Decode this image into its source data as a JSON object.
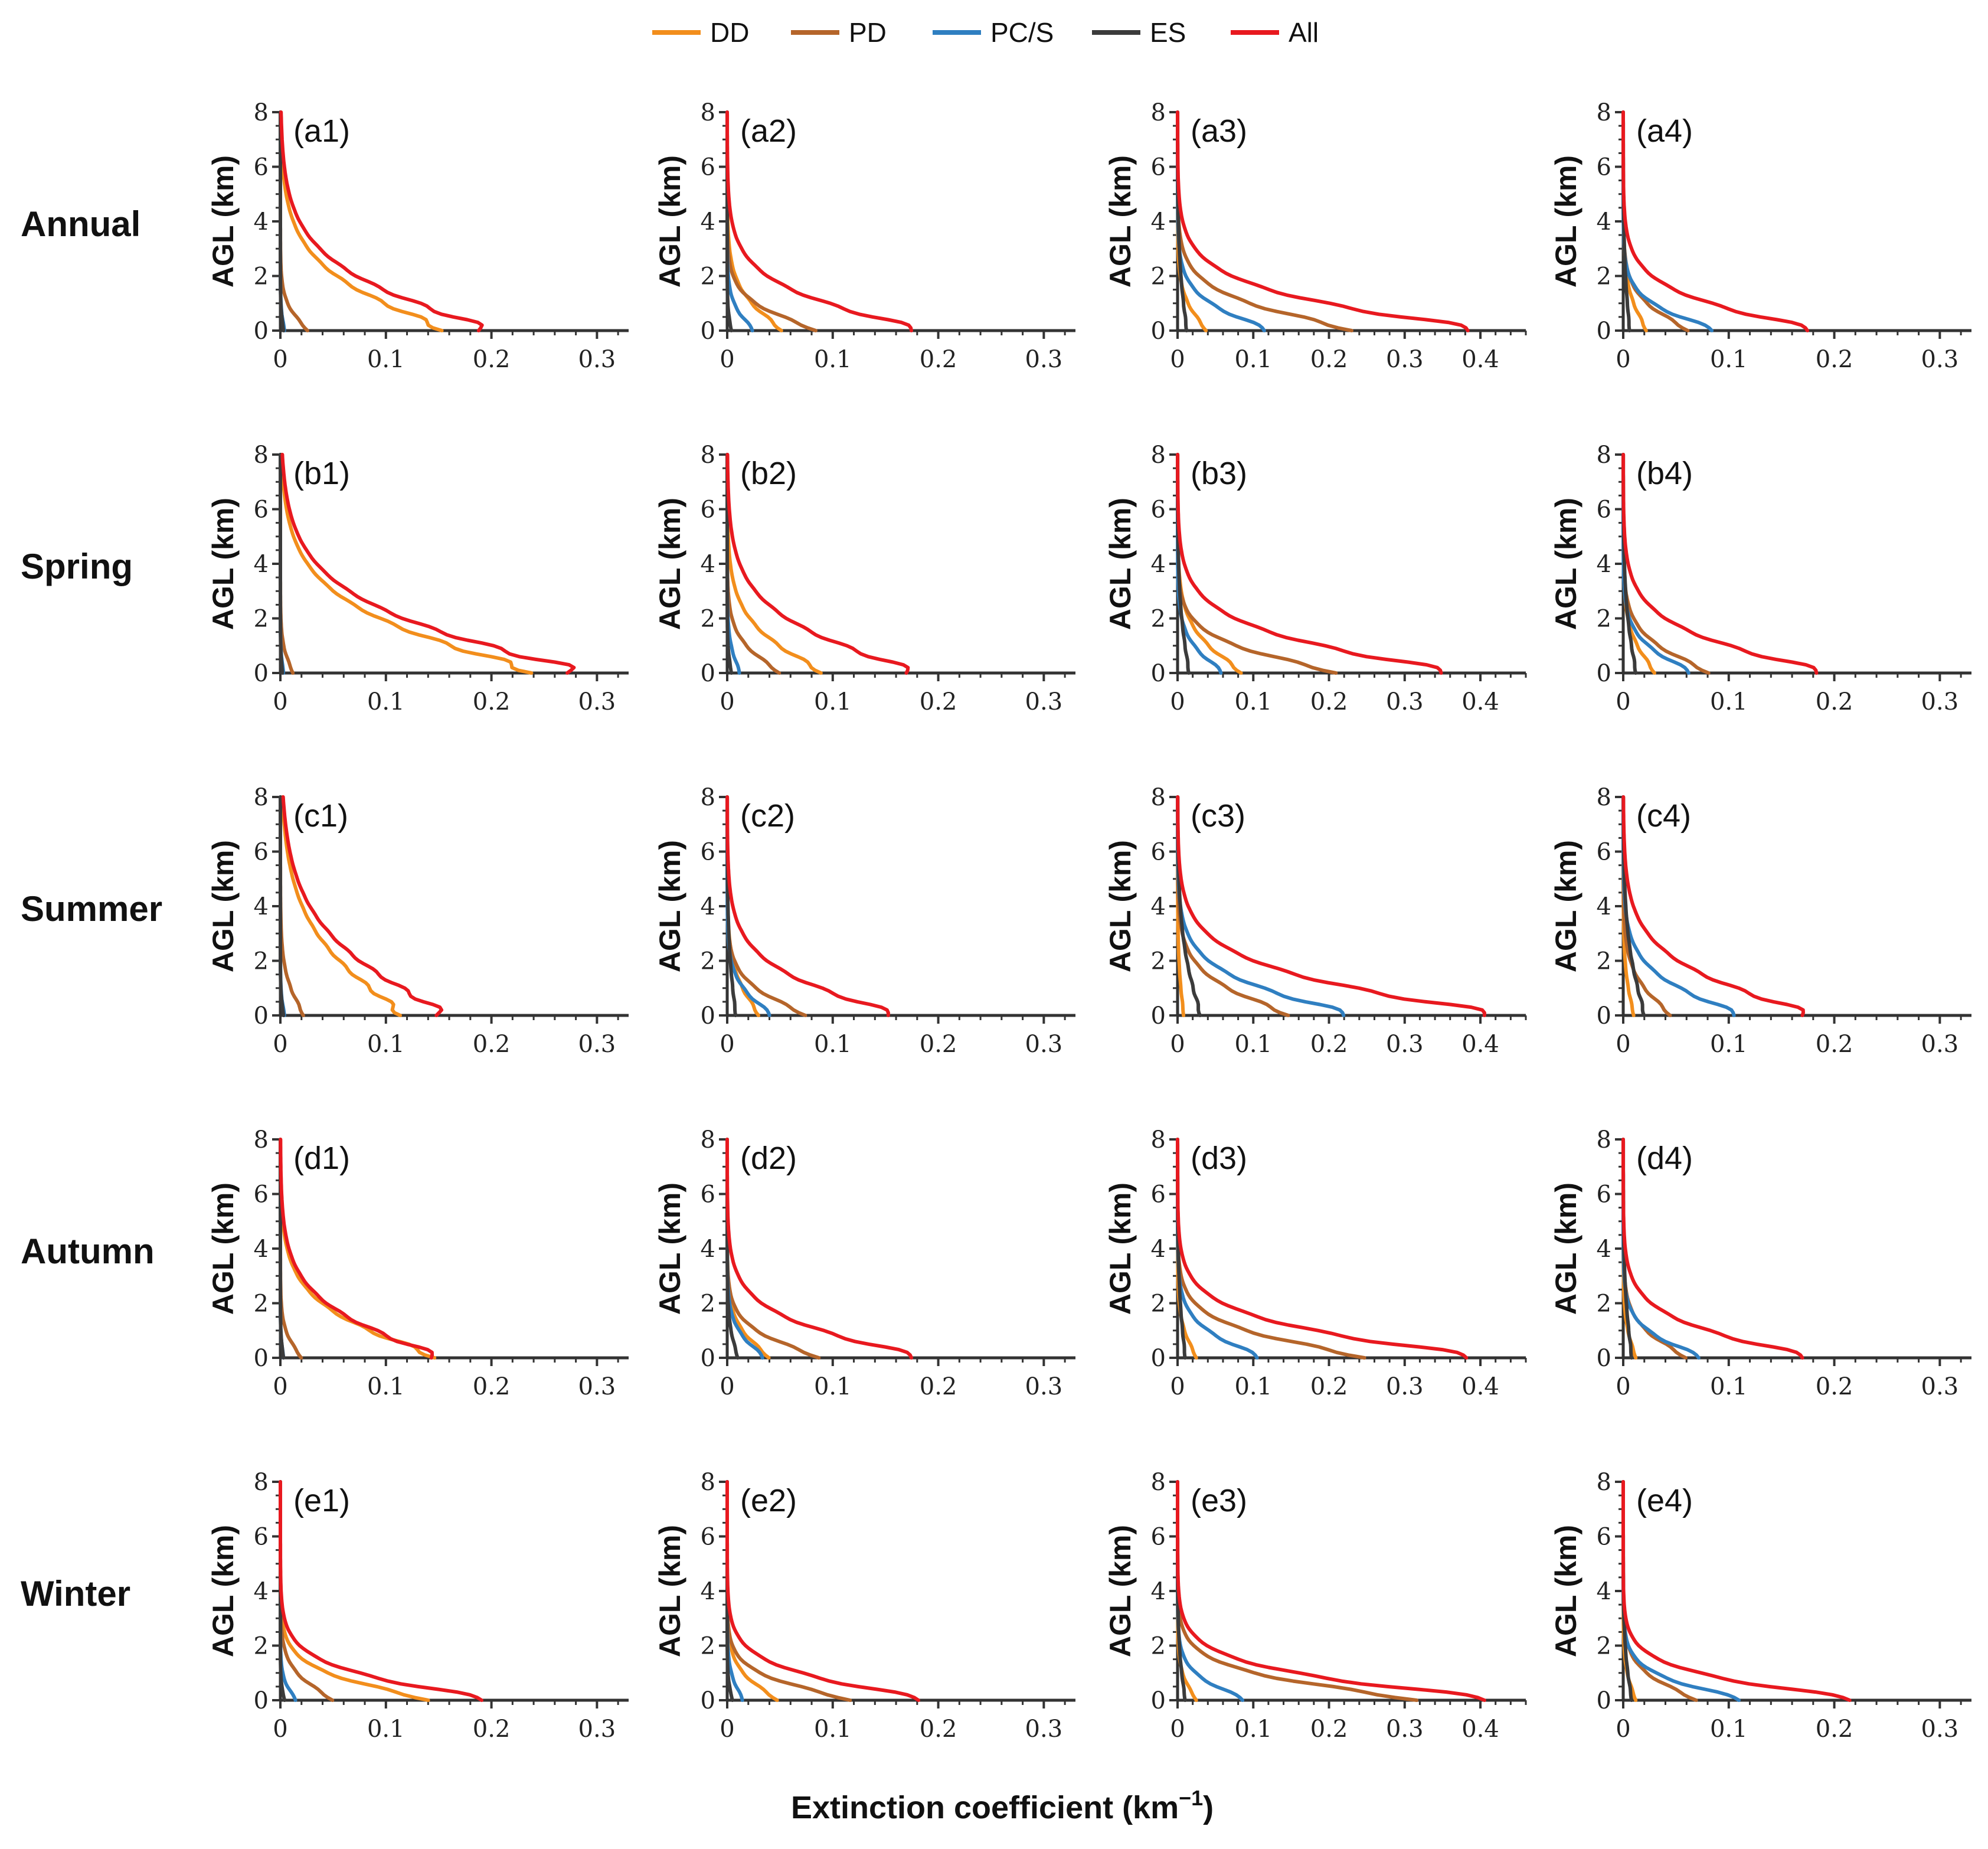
{
  "chart_data": {
    "type": "line",
    "xlabel": "Extinction coefficient (km",
    "xlabel_sup": "−1",
    "xlabel_close": ")",
    "ylabel": "AGL (km)",
    "ylim": [
      0,
      8
    ],
    "y_ticks": [
      "0",
      "2",
      "4",
      "6",
      "8"
    ],
    "x_ticks_by_col": [
      [
        "0",
        "0.1",
        "0.2",
        "0.3"
      ],
      [
        "0",
        "0.1",
        "0.2",
        "0.3"
      ],
      [
        "0",
        "0.1",
        "0.2",
        "0.3",
        "0.4"
      ],
      [
        "0",
        "0.1",
        "0.2",
        "0.3"
      ]
    ],
    "xlim_by_col": [
      [
        0,
        0.33
      ],
      [
        0,
        0.33
      ],
      [
        0,
        0.46
      ],
      [
        0,
        0.33
      ]
    ],
    "legend": [
      {
        "key": "DD",
        "label": "DD",
        "color": "#f28e1c"
      },
      {
        "key": "PD",
        "label": "PD",
        "color": "#b5652a"
      },
      {
        "key": "PCS",
        "label": "PC/S",
        "color": "#2f7fc1"
      },
      {
        "key": "ES",
        "label": "ES",
        "color": "#3b3b3b"
      },
      {
        "key": "All",
        "label": "All",
        "color": "#e8191f"
      }
    ],
    "row_labels": [
      "Annual",
      "Spring",
      "Summer",
      "Autumn",
      "Winter"
    ],
    "panels": [
      [
        {
          "label": "(a1)",
          "surface": {
            "DD": 0.155,
            "PD": 0.026,
            "PCS": 0.004,
            "ES": 0.003,
            "All": 0.197
          },
          "scale_h": {
            "DD": 1.9,
            "PD": 0.8,
            "PCS": 0.6,
            "ES": 0.6,
            "All": 2.0
          }
        },
        {
          "label": "(a2)",
          "surface": {
            "DD": 0.052,
            "PD": 0.085,
            "PCS": 0.025,
            "ES": 0.004,
            "All": 0.183
          },
          "scale_h": {
            "DD": 1.2,
            "PD": 0.9,
            "PCS": 0.8,
            "ES": 0.6,
            "All": 1.4
          }
        },
        {
          "label": "(a3)",
          "surface": {
            "DD": 0.038,
            "PD": 0.233,
            "PCS": 0.12,
            "ES": 0.012,
            "All": 0.402
          },
          "scale_h": {
            "DD": 1.0,
            "PD": 1.1,
            "PCS": 1.0,
            "ES": 2.0,
            "All": 1.3
          }
        },
        {
          "label": "(a4)",
          "surface": {
            "DD": 0.022,
            "PD": 0.062,
            "PCS": 0.088,
            "ES": 0.006,
            "All": 0.183
          },
          "scale_h": {
            "DD": 1.2,
            "PD": 1.0,
            "PCS": 0.9,
            "ES": 2.0,
            "All": 1.2
          }
        }
      ],
      [
        {
          "label": "(b1)",
          "surface": {
            "DD": 0.241,
            "PD": 0.012,
            "PCS": 0.003,
            "ES": 0.002,
            "All": 0.285
          },
          "scale_h": {
            "DD": 2.1,
            "PD": 0.8,
            "PCS": 0.6,
            "ES": 0.6,
            "All": 2.2
          }
        },
        {
          "label": "(b2)",
          "surface": {
            "DD": 0.09,
            "PD": 0.05,
            "PCS": 0.012,
            "ES": 0.004,
            "All": 0.178
          },
          "scale_h": {
            "DD": 1.5,
            "PD": 1.0,
            "PCS": 0.9,
            "ES": 0.7,
            "All": 1.8
          }
        },
        {
          "label": "(b3)",
          "surface": {
            "DD": 0.085,
            "PD": 0.212,
            "PCS": 0.06,
            "ES": 0.015,
            "All": 0.365
          },
          "scale_h": {
            "DD": 1.3,
            "PD": 1.0,
            "PCS": 1.0,
            "ES": 2.0,
            "All": 1.4
          }
        },
        {
          "label": "(b4)",
          "surface": {
            "DD": 0.03,
            "PD": 0.082,
            "PCS": 0.065,
            "ES": 0.012,
            "All": 0.192
          },
          "scale_h": {
            "DD": 1.2,
            "PD": 1.1,
            "PCS": 1.0,
            "ES": 2.0,
            "All": 1.4
          }
        }
      ],
      [
        {
          "label": "(c1)",
          "surface": {
            "DD": 0.115,
            "PD": 0.022,
            "PCS": 0.004,
            "ES": 0.003,
            "All": 0.155
          },
          "scale_h": {
            "DD": 2.6,
            "PD": 1.2,
            "PCS": 0.6,
            "ES": 0.6,
            "All": 2.6
          }
        },
        {
          "label": "(c2)",
          "surface": {
            "DD": 0.03,
            "PD": 0.075,
            "PCS": 0.042,
            "ES": 0.008,
            "All": 0.16
          },
          "scale_h": {
            "DD": 1.3,
            "PD": 1.0,
            "PCS": 1.0,
            "ES": 2.0,
            "All": 1.5
          }
        },
        {
          "label": "(c3)",
          "surface": {
            "DD": 0.008,
            "PD": 0.148,
            "PCS": 0.23,
            "ES": 0.03,
            "All": 0.425
          },
          "scale_h": {
            "DD": 1.5,
            "PD": 1.2,
            "PCS": 1.3,
            "ES": 2.2,
            "All": 1.5
          }
        },
        {
          "label": "(c4)",
          "surface": {
            "DD": 0.01,
            "PD": 0.045,
            "PCS": 0.11,
            "ES": 0.02,
            "All": 0.178
          },
          "scale_h": {
            "DD": 1.3,
            "PD": 1.2,
            "PCS": 1.3,
            "ES": 2.2,
            "All": 1.7
          }
        }
      ],
      [
        {
          "label": "(d1)",
          "surface": {
            "DD": 0.148,
            "PD": 0.02,
            "PCS": 0.003,
            "ES": 0.003,
            "All": 0.15
          },
          "scale_h": {
            "DD": 1.6,
            "PD": 0.8,
            "PCS": 0.6,
            "ES": 0.6,
            "All": 1.7
          }
        },
        {
          "label": "(d2)",
          "surface": {
            "DD": 0.04,
            "PD": 0.088,
            "PCS": 0.035,
            "ES": 0.01,
            "All": 0.183
          },
          "scale_h": {
            "DD": 1.0,
            "PD": 0.9,
            "PCS": 0.9,
            "ES": 1.0,
            "All": 1.3
          }
        },
        {
          "label": "(d3)",
          "surface": {
            "DD": 0.025,
            "PD": 0.25,
            "PCS": 0.11,
            "ES": 0.01,
            "All": 0.4
          },
          "scale_h": {
            "DD": 1.0,
            "PD": 1.0,
            "PCS": 1.0,
            "ES": 2.0,
            "All": 1.2
          }
        },
        {
          "label": "(d4)",
          "surface": {
            "DD": 0.012,
            "PD": 0.06,
            "PCS": 0.075,
            "ES": 0.008,
            "All": 0.178
          },
          "scale_h": {
            "DD": 1.0,
            "PD": 1.0,
            "PCS": 0.9,
            "ES": 2.0,
            "All": 1.2
          }
        }
      ],
      [
        {
          "label": "(e1)",
          "surface": {
            "DD": 0.142,
            "PD": 0.05,
            "PCS": 0.015,
            "ES": 0.004,
            "All": 0.2
          },
          "scale_h": {
            "DD": 0.9,
            "PD": 0.9,
            "PCS": 0.6,
            "ES": 0.5,
            "All": 1.0
          }
        },
        {
          "label": "(e2)",
          "surface": {
            "DD": 0.048,
            "PD": 0.118,
            "PCS": 0.015,
            "ES": 0.005,
            "All": 0.19
          },
          "scale_h": {
            "DD": 0.9,
            "PD": 0.8,
            "PCS": 0.8,
            "ES": 0.6,
            "All": 1.0
          }
        },
        {
          "label": "(e3)",
          "surface": {
            "DD": 0.025,
            "PD": 0.32,
            "PCS": 0.09,
            "ES": 0.01,
            "All": 0.425
          },
          "scale_h": {
            "DD": 0.8,
            "PD": 0.9,
            "PCS": 0.8,
            "ES": 1.5,
            "All": 1.0
          }
        },
        {
          "label": "(e4)",
          "surface": {
            "DD": 0.012,
            "PD": 0.07,
            "PCS": 0.115,
            "ES": 0.008,
            "All": 0.225
          },
          "scale_h": {
            "DD": 0.9,
            "PD": 0.9,
            "PCS": 0.8,
            "ES": 1.5,
            "All": 0.9
          }
        }
      ]
    ]
  }
}
